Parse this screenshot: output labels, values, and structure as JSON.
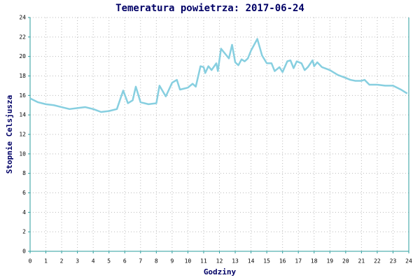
{
  "chart_data": {
    "type": "line",
    "title": "Temeratura powietrza: 2017-06-24",
    "x_label": "Godziny",
    "y_label": "Stopnie Celsjusza",
    "xlim": [
      0,
      24
    ],
    "ylim": [
      0,
      24
    ],
    "xticks": [
      0,
      1,
      2,
      3,
      4,
      5,
      6,
      7,
      8,
      9,
      10,
      11,
      12,
      13,
      14,
      15,
      16,
      17,
      18,
      19,
      20,
      21,
      22,
      23,
      24
    ],
    "yticks": [
      0,
      2,
      4,
      6,
      8,
      10,
      12,
      14,
      16,
      18,
      20,
      22,
      24
    ],
    "grid": true,
    "series": [
      {
        "color": "#87cfe0",
        "x": [
          0,
          0.5,
          1,
          1.5,
          2,
          2.5,
          3,
          3.5,
          4,
          4.5,
          5,
          5.5,
          5.9,
          6.2,
          6.5,
          6.7,
          7,
          7.5,
          8,
          8.2,
          8.6,
          9,
          9.3,
          9.5,
          10,
          10.3,
          10.5,
          10.8,
          11,
          11.1,
          11.3,
          11.5,
          11.8,
          11.9,
          12.1,
          12.4,
          12.6,
          12.8,
          13,
          13.2,
          13.4,
          13.6,
          13.8,
          14,
          14.4,
          14.7,
          15,
          15.3,
          15.5,
          15.8,
          16,
          16.3,
          16.5,
          16.7,
          16.9,
          17.2,
          17.4,
          17.6,
          17.9,
          18,
          18.2,
          18.5,
          19,
          19.5,
          20,
          20.3,
          20.6,
          21,
          21.2,
          21.5,
          22,
          22.5,
          23,
          23.5,
          23.9
        ],
        "values": [
          15.7,
          15.3,
          15.1,
          15.0,
          14.8,
          14.6,
          14.7,
          14.8,
          14.6,
          14.3,
          14.4,
          14.6,
          16.5,
          15.2,
          15.5,
          16.9,
          15.3,
          15.1,
          15.2,
          17.0,
          15.9,
          17.3,
          17.6,
          16.6,
          16.8,
          17.2,
          16.9,
          19.0,
          18.9,
          18.3,
          19.0,
          18.6,
          19.3,
          18.5,
          20.8,
          20.2,
          19.8,
          21.2,
          19.4,
          19.1,
          19.7,
          19.5,
          19.8,
          20.6,
          21.8,
          20.1,
          19.3,
          19.3,
          18.5,
          18.9,
          18.4,
          19.5,
          19.6,
          18.8,
          19.5,
          19.3,
          18.6,
          18.9,
          19.6,
          19.0,
          19.4,
          18.9,
          18.6,
          18.1,
          17.8,
          17.6,
          17.5,
          17.5,
          17.6,
          17.1,
          17.1,
          17.0,
          17.0,
          16.6,
          16.2
        ]
      }
    ]
  }
}
